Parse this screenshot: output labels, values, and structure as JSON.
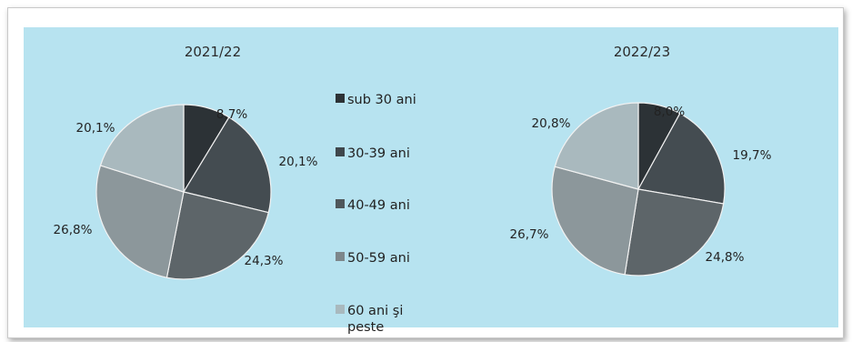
{
  "chart_data": [
    {
      "type": "pie",
      "title": "2021/22",
      "categories": [
        "sub 30 ani",
        "30-39 ani",
        "40-49 ani",
        "50-59 ani",
        "60 ani şi peste"
      ],
      "values": [
        8.7,
        20.1,
        24.3,
        26.8,
        20.1
      ],
      "labels": [
        "8,7%",
        "20,1%",
        "24,3%",
        "26,8%",
        "20,1%"
      ]
    },
    {
      "type": "pie",
      "title": "2022/23",
      "categories": [
        "sub 30 ani",
        "30-39 ani",
        "40-49 ani",
        "50-59 ani",
        "60 ani şi peste"
      ],
      "values": [
        8.0,
        19.7,
        24.8,
        26.7,
        20.8
      ],
      "labels": [
        "8,0%",
        "19,7%",
        "24,8%",
        "26,7%",
        "20,8%"
      ]
    }
  ],
  "legend": {
    "placement": "center",
    "items": [
      {
        "label": "sub 30 ani"
      },
      {
        "label": "30-39 ani"
      },
      {
        "label": "40-49 ani"
      },
      {
        "label": "50-59 ani"
      },
      {
        "label_lines": [
          "60 ani şi",
          "peste"
        ]
      }
    ]
  },
  "colors": {
    "slices": [
      "#2c3236",
      "#444c51",
      "#5d6569",
      "#8c979b",
      "#a9b9be"
    ],
    "legend_swatches": [
      "#2c3236",
      "#3f474c",
      "#4f575b",
      "#7d878b",
      "#a9b9be"
    ],
    "panel_background": "#b7e3f0"
  }
}
